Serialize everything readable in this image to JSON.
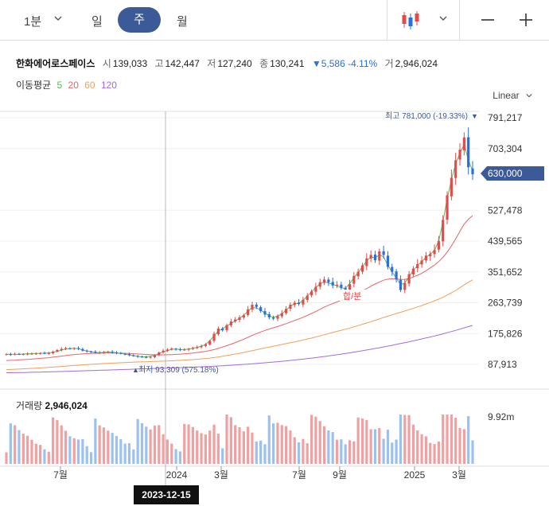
{
  "toolbar": {
    "interval": "1분",
    "periods": [
      "일",
      "주",
      "월"
    ],
    "active_period": "주"
  },
  "stock": {
    "name": "한화에어로스페이스",
    "open_label": "시",
    "open": "139,033",
    "high_label": "고",
    "high": "142,447",
    "low_label": "저",
    "low": "127,240",
    "close_label": "종",
    "close": "130,241",
    "change": "▼5,586 -4.11%",
    "volume_label": "거",
    "volume": "2,946,024"
  },
  "ma": {
    "label": "이동평균",
    "periods": [
      {
        "value": "5",
        "color": "#5cb85c"
      },
      {
        "value": "20",
        "color": "#e8656a"
      },
      {
        "value": "60",
        "color": "#f0a05a"
      },
      {
        "value": "120",
        "color": "#a36be0"
      }
    ]
  },
  "scale_label": "Linear",
  "price_axis": {
    "ticks": [
      "791,217",
      "703,304",
      "527,478",
      "439,565",
      "351,652",
      "263,739",
      "175,826",
      "87,913"
    ],
    "current_price": "630,000"
  },
  "annotations": {
    "high": "최고 781,000 (-19.33%)",
    "low": "최저 93,309 (575.18%)",
    "event": "합/분"
  },
  "volume": {
    "label": "거래량",
    "value": "2,946,024",
    "axis_tick": "9.92m"
  },
  "time_axis": {
    "labels": [
      "7월",
      "2024",
      "3월",
      "7월",
      "9월",
      "2025",
      "3월"
    ]
  },
  "crosshair_date": "2023-12-15",
  "colors": {
    "up": "#e34a4a",
    "down": "#2a6fdb",
    "accent": "#3d5a98",
    "vol_up": "#f0a0a0",
    "vol_down": "#9cc1ef"
  },
  "chart_data": {
    "type": "candlestick",
    "price_range": [
      60000,
      800000
    ],
    "high_point": 781000,
    "low_point": 93309,
    "weekly_close": [
      117000,
      116000,
      118000,
      117000,
      117500,
      118000,
      118500,
      119000,
      120000,
      119500,
      120000,
      124000,
      129000,
      132000,
      134000,
      133000,
      134000,
      132000,
      127000,
      125000,
      124000,
      121000,
      122000,
      123000,
      124500,
      122000,
      120000,
      118500,
      117000,
      114000,
      112000,
      110000,
      109000,
      107500,
      109000,
      114000,
      122000,
      127000,
      130000,
      133000,
      131000,
      129000,
      130000,
      132000,
      135000,
      137000,
      140000,
      145000,
      155000,
      175000,
      190000,
      185000,
      200000,
      210000,
      216000,
      222000,
      228000,
      245000,
      258000,
      252000,
      240000,
      230000,
      222000,
      218000,
      226000,
      234000,
      246000,
      258000,
      264000,
      260000,
      272000,
      284000,
      296000,
      309000,
      322000,
      330000,
      322000,
      313000,
      315000,
      307000,
      300000,
      317000,
      340000,
      352000,
      370000,
      390000,
      400000,
      385000,
      410000,
      400000,
      366000,
      352000,
      330000,
      300000,
      320000,
      345000,
      361000,
      374000,
      384000,
      398000,
      403000,
      414000,
      440000,
      500000,
      570000,
      620000,
      670000,
      700000,
      735000,
      650000,
      630000
    ],
    "ma5": [
      117000,
      117000,
      116500,
      117000,
      117500,
      118000,
      118500,
      119000,
      119500,
      120000,
      120500,
      122500,
      125000,
      128500,
      132000,
      133000,
      134000,
      132500,
      129000,
      126000,
      124500,
      122000,
      121500,
      122500,
      123000,
      122500,
      121000,
      119000,
      117500,
      115000,
      113000,
      110500,
      109500,
      109500,
      111000,
      114000,
      119000,
      123500,
      127000,
      131000,
      132000,
      130000,
      130500,
      131500,
      134000,
      136500,
      140000,
      145000,
      155000,
      170000,
      183000,
      190000,
      197000,
      205000,
      212000,
      219000,
      228000,
      240000,
      250000,
      249000,
      243000,
      234000,
      227000,
      222000,
      226000,
      232000,
      243000,
      254000,
      261000,
      262000,
      270000,
      283000,
      295000,
      307000,
      318000,
      323000,
      320000,
      316000,
      312000,
      306000,
      305000,
      318000,
      335000,
      350000,
      366000,
      383000,
      394000,
      392000,
      400000,
      395000,
      370000,
      352000,
      334000,
      315000,
      320000,
      338000,
      356000,
      370000,
      381000,
      393000,
      402000,
      413000,
      440000,
      495000,
      560000,
      615000,
      660000,
      690000,
      715000,
      670000,
      640000
    ],
    "ma20": [
      99000,
      99500,
      100000,
      100800,
      101500,
      102300,
      103000,
      104000,
      105000,
      106000,
      107000,
      108500,
      110000,
      111500,
      113000,
      114500,
      116000,
      117000,
      118000,
      118500,
      119000,
      119500,
      119800,
      120000,
      120100,
      120100,
      120000,
      119800,
      119400,
      118900,
      118300,
      117600,
      116900,
      116200,
      115600,
      115200,
      115000,
      115100,
      115400,
      115900,
      116500,
      117200,
      118100,
      119100,
      120300,
      121700,
      123300,
      125100,
      127300,
      130000,
      133500,
      137300,
      141300,
      145500,
      150000,
      154800,
      159800,
      165000,
      170400,
      175500,
      180300,
      184700,
      188600,
      192300,
      196000,
      199900,
      204000,
      208500,
      213000,
      217500,
      222300,
      227500,
      233000,
      239000,
      245000,
      251000,
      256500,
      261500,
      266000,
      270000,
      274000,
      279000,
      285000,
      291000,
      297500,
      304000,
      311000,
      317000,
      323000,
      328000,
      331000,
      332000,
      331500,
      330000,
      330500,
      333000,
      337000,
      342000,
      348000,
      355000,
      363000,
      371000,
      381000,
      393000,
      408000,
      426000,
      446000,
      467000,
      488000,
      502000,
      512000
    ],
    "ma60": [
      73000,
      73500,
      74000,
      74600,
      75200,
      75800,
      76500,
      77200,
      78000,
      78700,
      79500,
      80300,
      81200,
      82100,
      83000,
      83900,
      84800,
      85700,
      86500,
      87300,
      88100,
      88900,
      89600,
      90300,
      90900,
      91500,
      92100,
      92700,
      93200,
      93700,
      94200,
      94700,
      95100,
      95500,
      95900,
      96300,
      96700,
      97200,
      97700,
      98200,
      98800,
      99400,
      100100,
      100800,
      101600,
      102500,
      103500,
      104600,
      105900,
      107400,
      109100,
      111000,
      113000,
      115100,
      117300,
      119600,
      122000,
      124500,
      127100,
      129700,
      132300,
      134900,
      137400,
      139900,
      142300,
      144700,
      147100,
      149600,
      152100,
      154700,
      157400,
      160200,
      163100,
      166100,
      169200,
      172400,
      175600,
      178800,
      182000,
      185200,
      188400,
      191700,
      195100,
      198600,
      202200,
      205900,
      209700,
      213600,
      217600,
      221600,
      225500,
      229300,
      233000,
      236600,
      240200,
      243900,
      247700,
      251700,
      255800,
      260100,
      264500,
      269100,
      274100,
      279500,
      285500,
      292000,
      299000,
      306500,
      314500,
      322000,
      329000
    ],
    "ma120": [
      64000,
      64200,
      64400,
      64600,
      64800,
      65100,
      65400,
      65700,
      66000,
      66300,
      66600,
      66900,
      67200,
      67500,
      67900,
      68300,
      68700,
      69100,
      69500,
      69900,
      70300,
      70700,
      71100,
      71500,
      71900,
      72300,
      72700,
      73100,
      73500,
      73900,
      74300,
      74700,
      75100,
      75500,
      75900,
      76300,
      76700,
      77100,
      77500,
      77900,
      78300,
      78700,
      79100,
      79500,
      80000,
      80500,
      81000,
      81500,
      82100,
      82700,
      83300,
      84000,
      84700,
      85400,
      86200,
      87000,
      87800,
      88700,
      89600,
      90500,
      91500,
      92500,
      93500,
      94600,
      95700,
      96800,
      98000,
      99200,
      100400,
      101700,
      103000,
      104400,
      105800,
      107300,
      108800,
      110400,
      112000,
      113700,
      115400,
      117200,
      119000,
      120900,
      122800,
      124800,
      126800,
      128900,
      131000,
      133200,
      135400,
      137700,
      140000,
      142400,
      144800,
      147300,
      149800,
      152400,
      155000,
      157700,
      160400,
      163200,
      166000,
      168900,
      171900,
      175000,
      178200,
      181500,
      184900,
      188400,
      192000,
      195700,
      199000
    ]
  }
}
